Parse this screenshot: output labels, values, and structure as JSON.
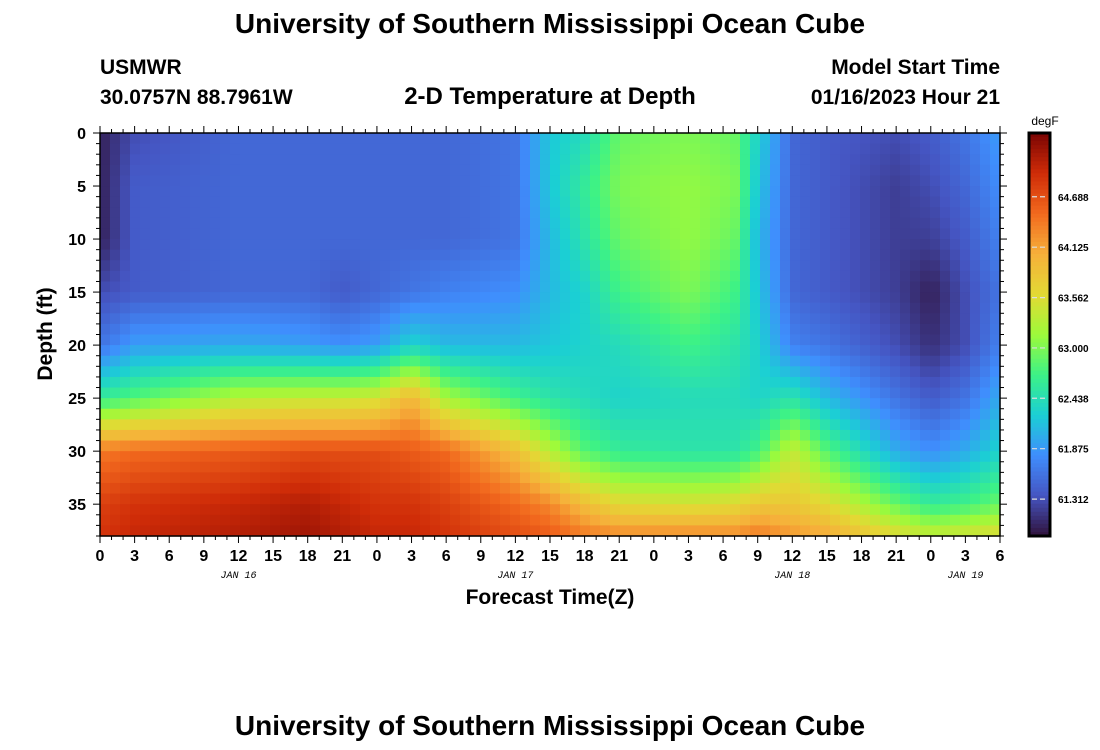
{
  "page": {
    "title": "University of Southern Mississippi Ocean Cube",
    "footer_title": "University of Southern Mississippi Ocean Cube",
    "station_id": "USMWR",
    "station_coords": "30.0757N  88.7961W",
    "plot_title": "2-D Temperature at Depth",
    "model_start_label": "Model Start Time",
    "model_start_value": "01/16/2023 Hour 21"
  },
  "chart_data": {
    "type": "heatmap",
    "title": "2-D Temperature at Depth",
    "xlabel": "Forecast Time(Z)",
    "ylabel": "Depth (ft)",
    "x_tick_labels": [
      "0",
      "3",
      "6",
      "9",
      "12",
      "15",
      "18",
      "21",
      "0",
      "3",
      "6",
      "9",
      "12",
      "15",
      "18",
      "21",
      "0",
      "3",
      "6",
      "9",
      "12",
      "15",
      "18",
      "21",
      "0",
      "3",
      "6"
    ],
    "x_range_hours": [
      0,
      78
    ],
    "day_labels": [
      {
        "label": "JAN 16",
        "hour": 12
      },
      {
        "label": "JAN 17",
        "hour": 36
      },
      {
        "label": "JAN 18",
        "hour": 60
      },
      {
        "label": "JAN 19",
        "hour": 75
      }
    ],
    "y_ticks": [
      0,
      5,
      10,
      15,
      20,
      25,
      30,
      35
    ],
    "y_tick_labels": [
      "0",
      "5",
      "10",
      "15",
      "20",
      "25",
      "30",
      "35"
    ],
    "ylim": [
      0,
      38
    ],
    "y_inverted": true,
    "colorbar": {
      "unit": "degF",
      "range": [
        60.9,
        65.4
      ],
      "tick_values": [
        64.688,
        64.125,
        63.562,
        63.0,
        62.438,
        61.875,
        61.312
      ],
      "tick_labels": [
        "64.688",
        "64.125",
        "63.562",
        "63.000",
        "62.438",
        "61.875",
        "61.312"
      ],
      "colormap": "turbo"
    },
    "value_profiles": [
      {
        "hour": 0,
        "depths": [
          0,
          5,
          10,
          15,
          20,
          25,
          30,
          35,
          38
        ],
        "temps": [
          61.0,
          61.0,
          61.0,
          61.3,
          61.6,
          62.6,
          64.4,
          64.8,
          64.9
        ]
      },
      {
        "hour": 3,
        "depths": [
          0,
          5,
          10,
          15,
          20,
          25,
          30,
          35,
          38
        ],
        "temps": [
          61.3,
          61.4,
          61.4,
          61.4,
          61.9,
          62.8,
          64.5,
          64.9,
          65.0
        ]
      },
      {
        "hour": 12,
        "depths": [
          0,
          5,
          10,
          15,
          20,
          25,
          30,
          35,
          38
        ],
        "temps": [
          61.5,
          61.5,
          61.5,
          61.5,
          62.0,
          63.3,
          64.6,
          65.0,
          65.1
        ]
      },
      {
        "hour": 18,
        "depths": [
          0,
          5,
          10,
          15,
          20,
          25,
          30,
          35,
          38
        ],
        "temps": [
          61.5,
          61.5,
          61.5,
          61.5,
          61.9,
          63.4,
          64.7,
          65.1,
          65.2
        ]
      },
      {
        "hour": 21,
        "depths": [
          0,
          5,
          10,
          15,
          20,
          25,
          30,
          35,
          38
        ],
        "temps": [
          61.5,
          61.5,
          61.5,
          61.4,
          61.8,
          63.4,
          64.7,
          65.0,
          65.1
        ]
      },
      {
        "hour": 24,
        "depths": [
          0,
          5,
          10,
          15,
          20,
          25,
          30,
          35,
          38
        ],
        "temps": [
          61.5,
          61.5,
          61.5,
          61.5,
          61.9,
          63.5,
          64.7,
          64.9,
          65.0
        ]
      },
      {
        "hour": 27,
        "depths": [
          0,
          5,
          10,
          15,
          20,
          25,
          30,
          35,
          38
        ],
        "temps": [
          61.5,
          61.5,
          61.5,
          61.6,
          62.3,
          64.0,
          64.6,
          64.9,
          65.0
        ]
      },
      {
        "hour": 30,
        "depths": [
          0,
          5,
          10,
          15,
          20,
          25,
          30,
          35,
          38
        ],
        "temps": [
          61.5,
          61.5,
          61.5,
          61.7,
          62.1,
          63.2,
          64.5,
          64.8,
          64.9
        ]
      },
      {
        "hour": 36,
        "depths": [
          0,
          5,
          10,
          15,
          20,
          25,
          30,
          35,
          38
        ],
        "temps": [
          61.6,
          61.6,
          61.6,
          61.8,
          62.1,
          62.7,
          63.9,
          64.5,
          64.7
        ]
      },
      {
        "hour": 39,
        "depths": [
          0,
          5,
          10,
          15,
          20,
          25,
          30,
          35,
          38
        ],
        "temps": [
          62.2,
          62.2,
          62.1,
          62.1,
          62.2,
          62.5,
          63.3,
          64.3,
          64.6
        ]
      },
      {
        "hour": 42,
        "depths": [
          0,
          5,
          10,
          15,
          20,
          25,
          30,
          35,
          38
        ],
        "temps": [
          62.4,
          62.6,
          62.5,
          62.3,
          62.3,
          62.4,
          62.8,
          63.9,
          64.4
        ]
      },
      {
        "hour": 45,
        "depths": [
          0,
          5,
          10,
          15,
          20,
          25,
          30,
          35,
          38
        ],
        "temps": [
          62.9,
          63.0,
          62.9,
          62.7,
          62.4,
          62.3,
          62.6,
          63.6,
          64.3
        ]
      },
      {
        "hour": 51,
        "depths": [
          0,
          5,
          10,
          15,
          20,
          25,
          30,
          35,
          38
        ],
        "temps": [
          63.0,
          63.1,
          63.1,
          63.0,
          62.7,
          62.4,
          62.5,
          63.5,
          64.3
        ]
      },
      {
        "hour": 55,
        "depths": [
          0,
          5,
          10,
          15,
          20,
          25,
          30,
          35,
          38
        ],
        "temps": [
          62.9,
          63.0,
          62.9,
          62.7,
          62.5,
          62.4,
          62.5,
          63.6,
          64.3
        ]
      },
      {
        "hour": 57,
        "depths": [
          0,
          5,
          10,
          15,
          20,
          25,
          30,
          35,
          38
        ],
        "temps": [
          62.3,
          62.2,
          62.1,
          62.2,
          62.3,
          62.3,
          62.7,
          63.8,
          64.4
        ]
      },
      {
        "hour": 60,
        "depths": [
          0,
          5,
          10,
          15,
          20,
          25,
          30,
          35,
          38
        ],
        "temps": [
          61.5,
          61.5,
          61.5,
          61.5,
          61.7,
          62.5,
          63.4,
          63.8,
          64.2
        ]
      },
      {
        "hour": 63,
        "depths": [
          0,
          5,
          10,
          15,
          20,
          25,
          30,
          35,
          38
        ],
        "temps": [
          61.4,
          61.4,
          61.4,
          61.4,
          61.6,
          62.1,
          62.8,
          63.6,
          64.1
        ]
      },
      {
        "hour": 69,
        "depths": [
          0,
          5,
          10,
          15,
          20,
          25,
          30,
          35,
          38
        ],
        "temps": [
          61.3,
          61.2,
          61.2,
          61.2,
          61.3,
          61.6,
          62.0,
          62.9,
          63.6
        ]
      },
      {
        "hour": 72,
        "depths": [
          0,
          5,
          10,
          15,
          20,
          25,
          30,
          35,
          38
        ],
        "temps": [
          61.4,
          61.3,
          61.2,
          61.0,
          61.1,
          61.4,
          61.8,
          62.6,
          63.4
        ]
      },
      {
        "hour": 75,
        "depths": [
          0,
          5,
          10,
          15,
          20,
          25,
          30,
          35,
          38
        ],
        "temps": [
          61.6,
          61.5,
          61.4,
          61.3,
          61.3,
          61.6,
          62.0,
          62.7,
          63.5
        ]
      },
      {
        "hour": 78,
        "depths": [
          0,
          5,
          10,
          15,
          20,
          25,
          30,
          35,
          38
        ],
        "temps": [
          61.9,
          61.8,
          61.7,
          61.6,
          61.7,
          62.0,
          62.3,
          62.9,
          63.6
        ]
      }
    ]
  }
}
